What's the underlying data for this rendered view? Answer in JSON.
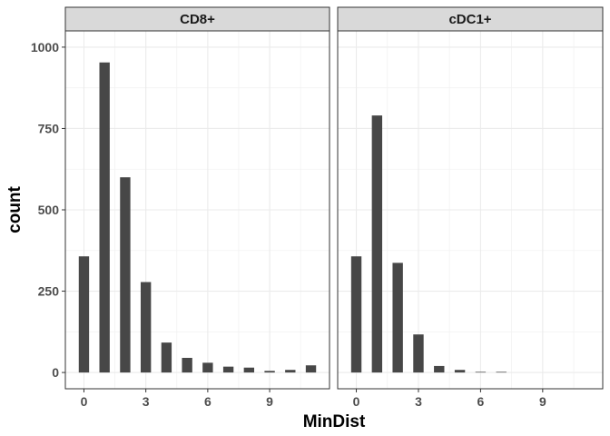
{
  "chart_data": {
    "type": "bar",
    "xlabel": "MinDist",
    "ylabel": "count",
    "xlim": [
      -0.9,
      11.9
    ],
    "ylim": [
      -50,
      1050
    ],
    "x_ticks": [
      0,
      3,
      6,
      9
    ],
    "y_ticks": [
      0,
      250,
      500,
      750,
      1000
    ],
    "grid": true,
    "bar_color": "#474747",
    "strip_fill": "#d9d9d9",
    "panels": [
      {
        "name": "CD8+",
        "x": [
          0,
          1,
          2,
          3,
          4,
          5,
          6,
          7,
          8,
          9,
          10,
          11
        ],
        "values": [
          357,
          953,
          600,
          278,
          92,
          45,
          30,
          18,
          15,
          5,
          8,
          22
        ]
      },
      {
        "name": "cDC1+",
        "x": [
          0,
          1,
          2,
          3,
          4,
          5,
          6,
          7
        ],
        "values": [
          357,
          790,
          337,
          117,
          20,
          8,
          2,
          2
        ]
      }
    ]
  }
}
